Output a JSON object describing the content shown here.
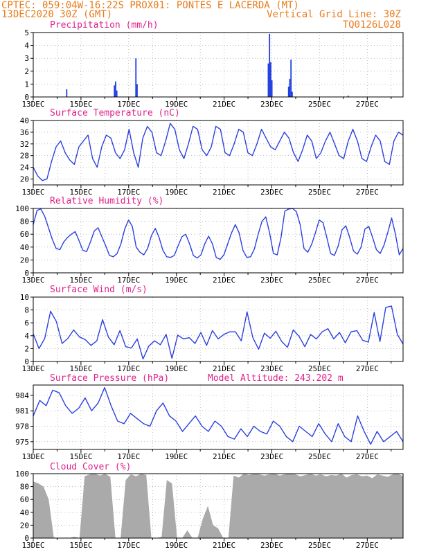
{
  "header": {
    "line1_left": "CPTEC:  059:04W-16:22S  PROX01: PONTES E LACERDA (MT)",
    "line2_left": "13DEC2020 30Z (GMT)",
    "line2_right": "Vertical Grid Line: 30Z",
    "line3_right": "TQ0126L028"
  },
  "colors": {
    "header": "#e87d1e",
    "title": "#e0218a",
    "line": "#2b3fe0",
    "bar": "#1f3fe0",
    "cloud": "#aaaaaa",
    "grid": "#999999"
  },
  "xaxis": {
    "labels": [
      "13DEC",
      "15DEC",
      "17DEC",
      "19DEC",
      "21DEC",
      "23DEC",
      "25DEC",
      "27DEC"
    ],
    "days_span": 15.5
  },
  "chart_data": [
    {
      "type": "bar",
      "title": "Precipitation (mm/h)",
      "ylim": [
        0,
        5
      ],
      "yticks": [
        0,
        1,
        2,
        3,
        4,
        5
      ],
      "bars": [
        [
          1.4,
          0.6
        ],
        [
          3.4,
          0.9
        ],
        [
          3.45,
          1.2
        ],
        [
          3.5,
          0.5
        ],
        [
          4.3,
          3.0
        ],
        [
          4.35,
          1.0
        ],
        [
          9.85,
          2.6
        ],
        [
          9.9,
          4.9
        ],
        [
          9.95,
          2.7
        ],
        [
          10.0,
          1.3
        ],
        [
          10.7,
          0.8
        ],
        [
          10.75,
          1.4
        ],
        [
          10.8,
          2.9
        ],
        [
          10.85,
          0.4
        ],
        [
          13.2,
          0.1
        ]
      ]
    },
    {
      "type": "line",
      "title": "Surface Temperature (nC)",
      "ylim": [
        18,
        40
      ],
      "yticks": [
        20,
        24,
        28,
        32,
        36,
        40
      ],
      "values": [
        24,
        21,
        19.5,
        20,
        26,
        31,
        33,
        29,
        26.5,
        25,
        31,
        33,
        35,
        27,
        24,
        31,
        35,
        34,
        29,
        27,
        30,
        37,
        29,
        24,
        34,
        38,
        36,
        29,
        28,
        33,
        39,
        37,
        30,
        27,
        32,
        38,
        37,
        30,
        28,
        31,
        38,
        37,
        29,
        28,
        32,
        37,
        36,
        29,
        28,
        32,
        37,
        34,
        31,
        30,
        33,
        36,
        34,
        29,
        26,
        30,
        35,
        33,
        27,
        29,
        33,
        36,
        32,
        28,
        27,
        33,
        37,
        33,
        27,
        26,
        31,
        35,
        33,
        26,
        25,
        33,
        36,
        35
      ]
    },
    {
      "type": "line",
      "title": "Relative Humidity (%)",
      "ylim": [
        0,
        100
      ],
      "yticks": [
        0,
        20,
        40,
        60,
        80,
        100
      ],
      "values": [
        75,
        97,
        99,
        88,
        70,
        52,
        38,
        36,
        48,
        55,
        60,
        64,
        50,
        35,
        33,
        48,
        65,
        70,
        56,
        42,
        27,
        25,
        30,
        45,
        68,
        82,
        72,
        40,
        32,
        28,
        38,
        58,
        69,
        55,
        35,
        25,
        24,
        27,
        42,
        56,
        60,
        45,
        27,
        23,
        28,
        45,
        57,
        45,
        24,
        21,
        28,
        45,
        62,
        75,
        62,
        35,
        24,
        25,
        37,
        60,
        80,
        87,
        62,
        30,
        28,
        55,
        96,
        99,
        100,
        95,
        75,
        38,
        32,
        44,
        62,
        82,
        78,
        55,
        30,
        27,
        42,
        67,
        73,
        55,
        34,
        29,
        40,
        68,
        72,
        55,
        36,
        30,
        43,
        63,
        85,
        60,
        28,
        38
      ]
    },
    {
      "type": "line",
      "title": "Surface Wind (m/s)",
      "ylim": [
        0,
        10
      ],
      "yticks": [
        0,
        2,
        4,
        6,
        8,
        10
      ],
      "values": [
        4.3,
        2,
        3.6,
        7.8,
        6.2,
        2.8,
        3.6,
        4.9,
        3.8,
        3.4,
        2.5,
        3.2,
        6.5,
        3.8,
        2.6,
        4.8,
        2.3,
        2.1,
        3.5,
        0.4,
        2.4,
        3.2,
        2.6,
        4.2,
        0.5,
        4.1,
        3.5,
        3.7,
        2.8,
        4.5,
        2.5,
        4.8,
        3.5,
        4.2,
        4.6,
        4.6,
        3.2,
        7.7,
        3.7,
        1.9,
        4.4,
        3.6,
        4.7,
        3.1,
        2.2,
        4.9,
        3.9,
        2.3,
        4.2,
        3.5,
        4.6,
        5.1,
        3.5,
        4.5,
        2.9,
        4.6,
        4.8,
        3.3,
        3,
        7.6,
        3.1,
        8.4,
        8.6,
        4.2,
        2.7
      ]
    },
    {
      "type": "line",
      "title": "Surface Pressure (hPa)",
      "annotation": "Model Altitude: 243.202 m",
      "ylim": [
        973.5,
        986
      ],
      "yticks": [
        975,
        978,
        981,
        984
      ],
      "values": [
        980,
        983,
        982,
        985,
        984.5,
        982,
        980.5,
        981.5,
        983.5,
        981,
        982.5,
        985.5,
        982,
        979,
        978.5,
        980.5,
        979.5,
        978.5,
        978,
        981,
        982.5,
        980,
        979,
        977,
        978.5,
        980,
        978,
        977,
        979,
        978,
        976,
        975.5,
        977.5,
        976,
        978,
        977,
        976.5,
        979,
        978,
        976,
        975,
        978,
        977,
        976,
        978.5,
        976.5,
        975,
        978.5,
        976,
        975,
        980,
        977,
        974.5,
        977,
        975,
        976,
        977,
        975
      ]
    },
    {
      "type": "area",
      "title": "Cloud Cover (%)",
      "ylim": [
        0,
        100
      ],
      "yticks": [
        0,
        20,
        40,
        60,
        80,
        100
      ],
      "values": [
        88,
        85,
        80,
        60,
        1,
        0,
        0,
        0,
        2,
        0,
        96,
        99,
        100,
        97,
        100,
        95,
        0,
        0,
        90,
        99,
        96,
        100,
        98,
        0,
        0,
        2,
        90,
        85,
        0,
        0,
        12,
        0,
        0,
        30,
        50,
        20,
        15,
        0,
        0,
        97,
        94,
        100,
        98,
        100,
        99,
        97,
        99,
        100,
        97,
        99,
        100,
        99,
        96,
        98,
        100,
        97,
        99,
        96,
        98,
        97,
        100,
        94,
        98,
        99,
        96,
        97,
        93,
        99,
        97,
        95,
        99,
        100,
        96
      ]
    }
  ]
}
